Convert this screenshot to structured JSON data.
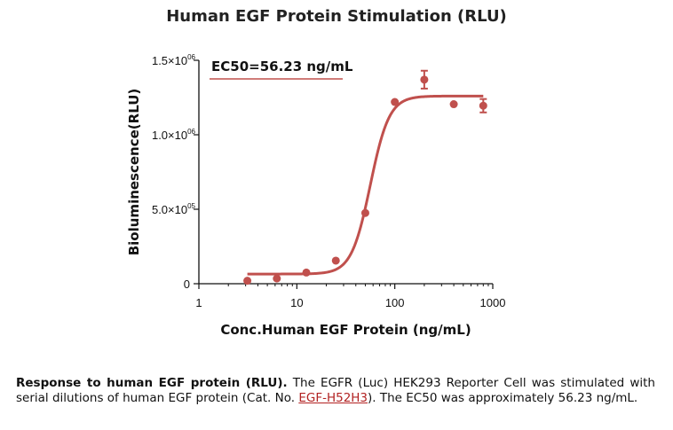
{
  "chart_data": {
    "type": "scatter",
    "title": "Human EGF Protein Stimulation (RLU)",
    "xlabel": "Conc.Human EGF Protein (ng/mL)",
    "ylabel": "Bioluminescence(RLU)",
    "x_scale": "log",
    "xlim": [
      1,
      1000
    ],
    "ylim": [
      0,
      1500000
    ],
    "x_ticks": [
      {
        "value": 1,
        "label": "1"
      },
      {
        "value": 10,
        "label": "10"
      },
      {
        "value": 100,
        "label": "100"
      },
      {
        "value": 1000,
        "label": "1000"
      }
    ],
    "y_ticks": [
      {
        "value": 0,
        "label": "0"
      },
      {
        "value": 500000,
        "label": "5.0×10",
        "exp": "05"
      },
      {
        "value": 1000000,
        "label": "1.0×10",
        "exp": "06"
      },
      {
        "value": 1500000,
        "label": "1.5×10",
        "exp": "06"
      }
    ],
    "annotation": "EC50=56.23 ng/mL",
    "ec50": 56.23,
    "color": "#c0504d",
    "points": [
      {
        "x": 3.125,
        "y": 20000,
        "err": 0
      },
      {
        "x": 6.25,
        "y": 35000,
        "err": 0
      },
      {
        "x": 12.5,
        "y": 75000,
        "err": 0
      },
      {
        "x": 25,
        "y": 155000,
        "err": 0
      },
      {
        "x": 50,
        "y": 475000,
        "err": 0
      },
      {
        "x": 100,
        "y": 1220000,
        "err": 0
      },
      {
        "x": 200,
        "y": 1370000,
        "err": 60000
      },
      {
        "x": 400,
        "y": 1205000,
        "err": 0
      },
      {
        "x": 800,
        "y": 1195000,
        "err": 45000
      }
    ],
    "fit": {
      "bottom": 65000,
      "top": 1260000,
      "ec50": 56.23,
      "hill": 4.5,
      "x_start": 3.125,
      "x_end": 800
    }
  },
  "caption": {
    "bold": "Response to human EGF protein (RLU).",
    "text1": " The EGFR (Luc) HEK293 Reporter Cell was stimulated with serial dilutions of human EGF protein (Cat. No. ",
    "link": "EGF-H52H3",
    "text2": "). The EC50 was approximately 56.23 ng/mL."
  }
}
